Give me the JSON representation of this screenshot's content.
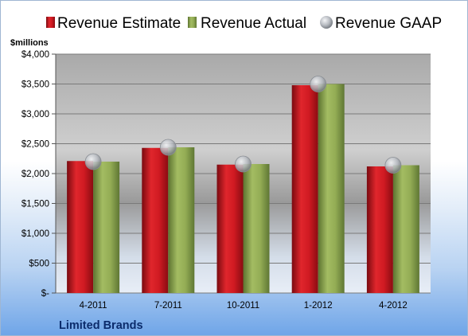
{
  "chart_data": {
    "type": "bar",
    "title": "",
    "ylabel": "$millions",
    "footer_label": "Limited Brands",
    "categories": [
      "4-2011",
      "7-2011",
      "10-2011",
      "1-2012",
      "4-2012"
    ],
    "series": [
      {
        "name": "Revenue Estimate",
        "kind": "bar",
        "color": "#c8151d",
        "values": [
          2210,
          2430,
          2150,
          3480,
          2120
        ]
      },
      {
        "name": "Revenue Actual",
        "kind": "bar",
        "color": "#8fa94f",
        "values": [
          2200,
          2440,
          2160,
          3500,
          2140
        ]
      },
      {
        "name": "Revenue GAAP",
        "kind": "marker",
        "color": "#b5b9bf",
        "values": [
          2200,
          2440,
          2160,
          3500,
          2140
        ]
      }
    ],
    "ylim": [
      0,
      4000
    ],
    "yticks": [
      0,
      500,
      1000,
      1500,
      2000,
      2500,
      3000,
      3500,
      4000
    ],
    "ytick_labels": [
      "$-",
      "$500",
      "$1,000",
      "$1,500",
      "$2,000",
      "$2,500",
      "$3,000",
      "$3,500",
      "$4,000"
    ],
    "grid": true,
    "legend_position": "top"
  }
}
